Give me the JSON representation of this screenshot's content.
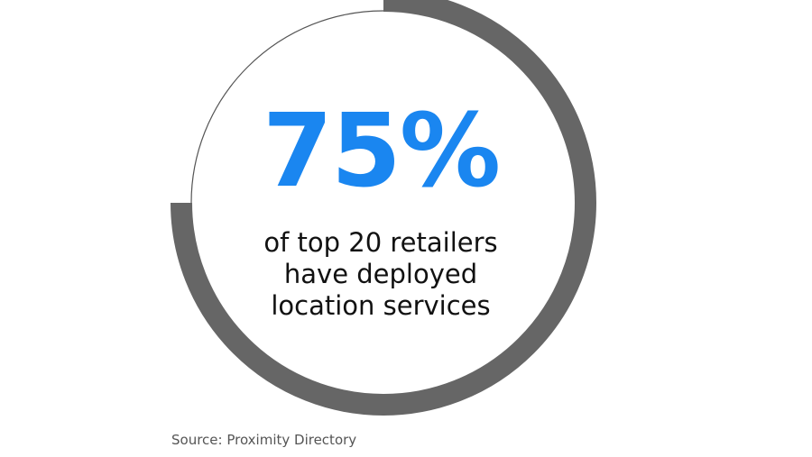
{
  "chart_data": {
    "type": "pie",
    "style": "donut",
    "value_percent": 75,
    "remainder_percent": 25,
    "value_label": "75%",
    "caption_lines": [
      "of top 20 retailers",
      "have deployed",
      "location services"
    ],
    "source": "Source: Proximity Directory"
  },
  "colors": {
    "value_text": "#1a86f0",
    "filled_ring": "#666666",
    "thin_ring": "#555555",
    "caption_text": "#111111",
    "source_text": "#555555"
  }
}
